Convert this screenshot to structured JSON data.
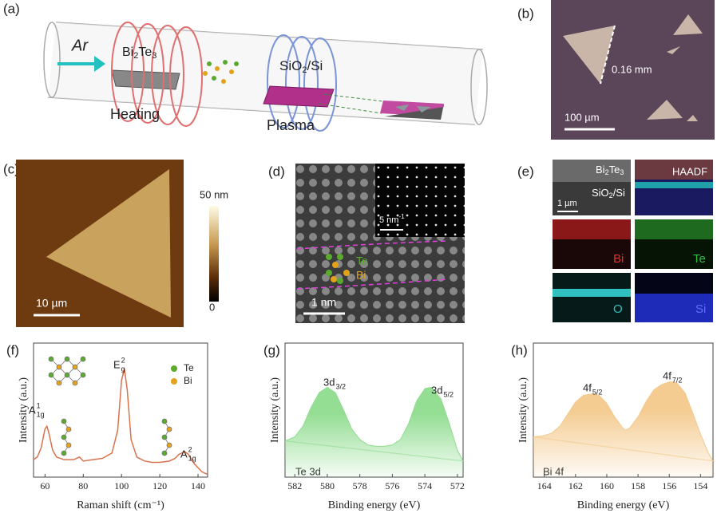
{
  "panel_a": {
    "label": "(a)",
    "gas": "Ar",
    "source": [
      "Bi",
      "2",
      "Te",
      "3"
    ],
    "heating": "Heating",
    "substrate": [
      "SiO",
      "2",
      "/Si"
    ],
    "plasma": "Plasma"
  },
  "panel_b": {
    "label": "(b)",
    "length": "0.16 mm",
    "scale": "100 µm"
  },
  "panel_c": {
    "label": "(c)",
    "colorbar_max": "50 nm",
    "colorbar_min": "0",
    "scale": "10 µm"
  },
  "panel_d": {
    "label": "(d)",
    "inset_scale": [
      "5 nm",
      "-1"
    ],
    "atom_te": "Te",
    "atom_bi": "Bi",
    "scale": "1 nm"
  },
  "panel_e": {
    "label": "(e)",
    "layer_top": [
      "Bi",
      "2",
      "Te",
      "3"
    ],
    "layer_bottom": [
      "SiO",
      "2",
      "/Si"
    ],
    "haadf": "HAADF",
    "scale": "1 µm",
    "maps": [
      "Bi",
      "Te",
      "O",
      "Si"
    ]
  },
  "chart_data": [
    {
      "type": "line",
      "panel_label": "(f)",
      "x_label": "Raman shift (cm⁻¹)",
      "y_label": "Intensity (a.u.)",
      "xlim": [
        54,
        145
      ],
      "xticks": [
        60,
        80,
        100,
        120,
        140
      ],
      "ylim": [
        0,
        1
      ],
      "x": [
        54,
        56,
        58,
        60,
        61,
        62,
        64,
        66,
        70,
        75,
        78,
        80,
        85,
        90,
        95,
        98,
        100,
        101.5,
        103,
        105,
        108,
        112,
        116,
        120,
        125,
        128,
        130,
        133,
        135,
        138,
        142,
        145
      ],
      "series": [
        {
          "color": "#d9734e",
          "values": [
            0.13,
            0.15,
            0.22,
            0.36,
            0.38,
            0.33,
            0.2,
            0.15,
            0.13,
            0.13,
            0.15,
            0.12,
            0.13,
            0.14,
            0.18,
            0.35,
            0.72,
            0.81,
            0.65,
            0.28,
            0.15,
            0.12,
            0.11,
            0.11,
            0.12,
            0.14,
            0.17,
            0.19,
            0.17,
            0.1,
            0.04,
            0.02
          ]
        }
      ],
      "annotations": [
        {
          "base": "A",
          "sup": "1",
          "sub": "1g"
        },
        {
          "base": "E",
          "sup": "2",
          "sub": "g"
        },
        {
          "base": "A",
          "sup": "2",
          "sub": "1g"
        }
      ],
      "legend": [
        {
          "name": "Te",
          "color": "#5aaa2e"
        },
        {
          "name": "Bi",
          "color": "#e3a21a"
        }
      ]
    },
    {
      "type": "area",
      "panel_label": "(g)",
      "x_label": "Binding energy (eV)",
      "y_label": "Intensity (a.u.)",
      "corner_label": "Te 3d",
      "xlim": [
        582.6,
        571.65
      ],
      "xticks": [
        582,
        580,
        578,
        576,
        574,
        572
      ],
      "ylim": [
        0,
        1
      ],
      "x": [
        582.6,
        582,
        581.5,
        581,
        580.5,
        580,
        579.5,
        579,
        578.5,
        578,
        577.5,
        577,
        576.5,
        576,
        575.5,
        575,
        574.5,
        574,
        573.6,
        573,
        572.5,
        572,
        571.65
      ],
      "series": [
        {
          "color": "#8fdc8f",
          "values": [
            0.27,
            0.3,
            0.38,
            0.52,
            0.63,
            0.67,
            0.63,
            0.5,
            0.36,
            0.28,
            0.24,
            0.23,
            0.23,
            0.24,
            0.28,
            0.4,
            0.57,
            0.66,
            0.67,
            0.58,
            0.4,
            0.2,
            0.12
          ]
        }
      ],
      "background": {
        "x": [
          582.6,
          571.65
        ],
        "values": [
          0.27,
          0.12
        ],
        "color": "#b9e8b9"
      },
      "annotations": [
        {
          "base": "3d",
          "sub": "3/2"
        },
        {
          "base": "3d",
          "sub": "5/2"
        }
      ]
    },
    {
      "type": "area",
      "panel_label": "(h)",
      "x_label": "Binding energy (eV)",
      "y_label": "Intensity (a.u.)",
      "corner_label": "Bi 4f",
      "xlim": [
        164.7,
        153.2
      ],
      "xticks": [
        164,
        162,
        160,
        158,
        156,
        154
      ],
      "ylim": [
        0,
        1
      ],
      "x": [
        164.7,
        164,
        163.5,
        163,
        162.5,
        162,
        161.5,
        161,
        160.8,
        160.5,
        160,
        159.5,
        159,
        158.8,
        158.5,
        158,
        157.5,
        157,
        156.5,
        156,
        155.7,
        155.5,
        155,
        154.5,
        154,
        153.5,
        153.2
      ],
      "series": [
        {
          "color": "#f3c98c",
          "values": [
            0.3,
            0.31,
            0.33,
            0.38,
            0.47,
            0.56,
            0.61,
            0.62,
            0.62,
            0.61,
            0.55,
            0.45,
            0.37,
            0.35,
            0.37,
            0.45,
            0.56,
            0.65,
            0.69,
            0.71,
            0.71,
            0.7,
            0.63,
            0.48,
            0.32,
            0.18,
            0.12
          ]
        }
      ],
      "background": {
        "x": [
          164.7,
          153.2
        ],
        "values": [
          0.3,
          0.12
        ],
        "color": "#f6dcb4"
      },
      "annotations": [
        {
          "base": "4f",
          "sub": "5/2"
        },
        {
          "base": "4f",
          "sub": "7/2"
        }
      ]
    }
  ]
}
